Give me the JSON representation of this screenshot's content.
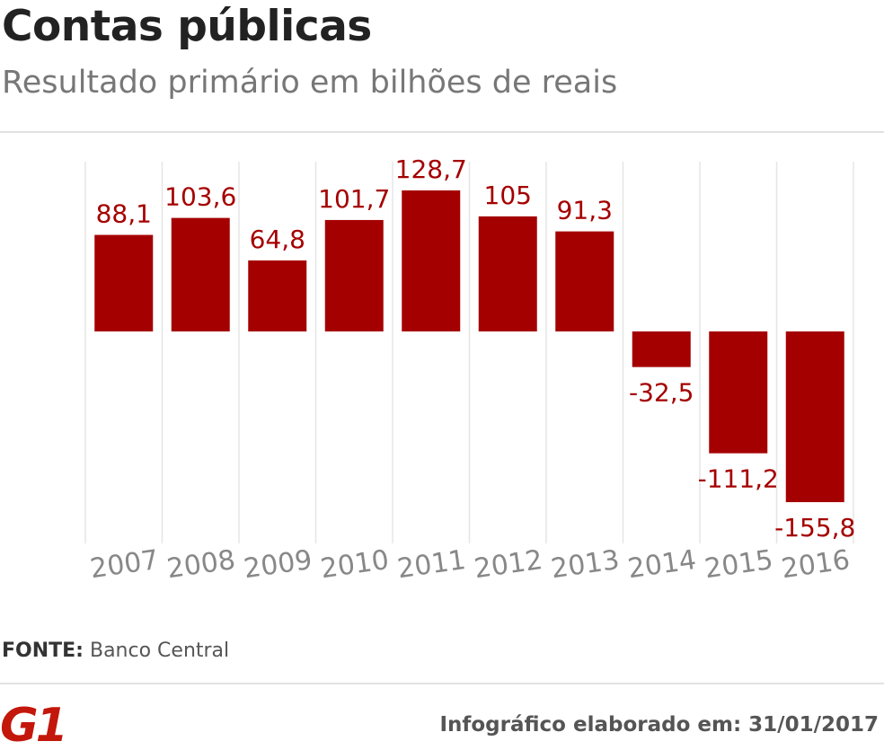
{
  "header": {
    "title": "Contas públicas",
    "subtitle": "Resultado primário em bilhões de reais"
  },
  "chart_data": {
    "type": "bar",
    "categories": [
      "2007",
      "2008",
      "2009",
      "2010",
      "2011",
      "2012",
      "2013",
      "2014",
      "2015",
      "2016"
    ],
    "values": [
      88.1,
      103.6,
      64.8,
      101.7,
      128.7,
      105,
      91.3,
      -32.5,
      -111.2,
      -155.8
    ],
    "value_labels": [
      "88,1",
      "103,6",
      "64,8",
      "101,7",
      "128,7",
      "105",
      "91,3",
      "-32,5",
      "-111,2",
      "-155,8"
    ],
    "title": "Resultado primário em bilhões de reais",
    "xlabel": "",
    "ylabel": "",
    "ylim": [
      -155.8,
      128.7
    ],
    "grid": "vertical",
    "bar_color": "#a50000",
    "label_color": "#a50000",
    "tick_color": "#888888",
    "grid_color": "#e6e6e6"
  },
  "footer": {
    "source_label": "FONTE:",
    "source_value": "Banco Central",
    "logo_text": "G1",
    "logo_color": "#c4170c",
    "date_text": "Infográfico elaborado em: 31/01/2017"
  }
}
